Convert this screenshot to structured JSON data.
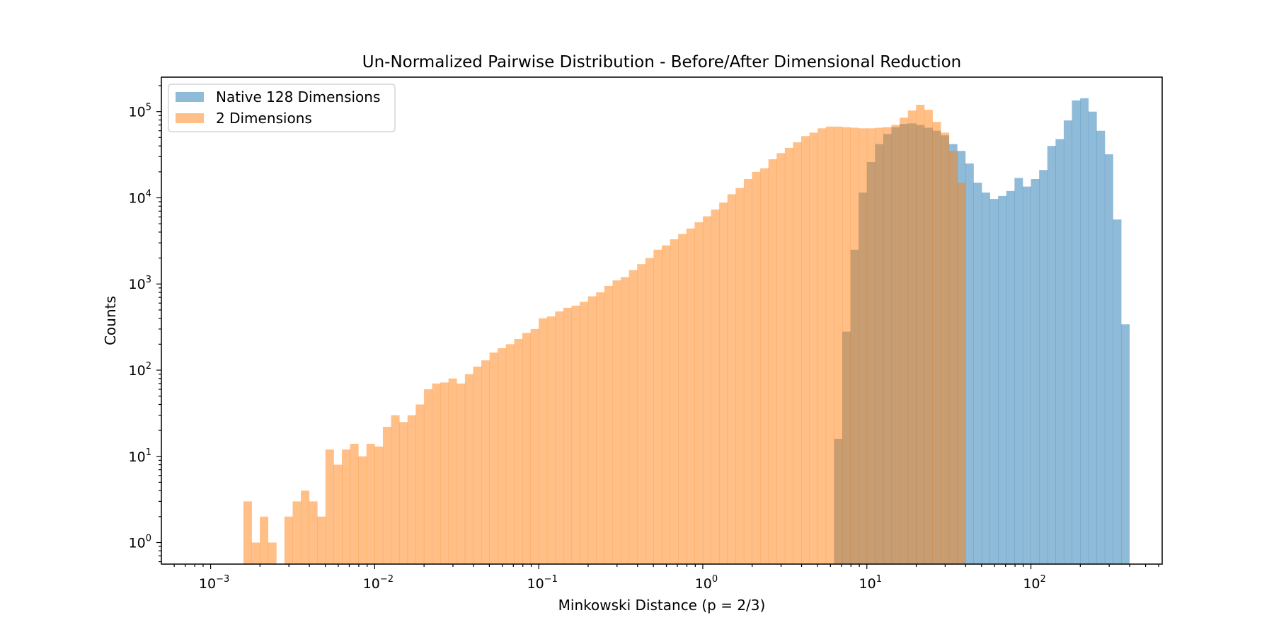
{
  "chart_data": {
    "type": "histogram",
    "title": "Un-Normalized Pairwise Distribution - Before/After Dimensional Reduction",
    "xlabel": "Minkowski Distance (p = 2/3)",
    "ylabel": "Counts",
    "xscale": "log",
    "yscale": "log",
    "xlim": [
      0.000501,
      630.96
    ],
    "ylim": [
      0.562,
      251189
    ],
    "grid": false,
    "legend_position": "upper-left",
    "x_ticks": [
      {
        "value": 0.001,
        "base": "10",
        "exp": "−3"
      },
      {
        "value": 0.01,
        "base": "10",
        "exp": "−2"
      },
      {
        "value": 0.1,
        "base": "10",
        "exp": "−1"
      },
      {
        "value": 1,
        "base": "10",
        "exp": "0"
      },
      {
        "value": 10,
        "base": "10",
        "exp": "1"
      },
      {
        "value": 100,
        "base": "10",
        "exp": "2"
      }
    ],
    "y_ticks": [
      {
        "value": 1,
        "base": "10",
        "exp": "0"
      },
      {
        "value": 10,
        "base": "10",
        "exp": "1"
      },
      {
        "value": 100,
        "base": "10",
        "exp": "2"
      },
      {
        "value": 1000,
        "base": "10",
        "exp": "3"
      },
      {
        "value": 10000,
        "base": "10",
        "exp": "4"
      },
      {
        "value": 100000,
        "base": "10",
        "exp": "5"
      }
    ],
    "bin_log_start": -2.8,
    "bin_log_width": 0.05,
    "series": [
      {
        "name": "Native 128 Dimensions",
        "color": "#1f77b4",
        "alpha": 0.5,
        "start_bin": 0,
        "values": [
          0,
          0,
          0,
          0,
          0,
          0,
          0,
          0,
          0,
          0,
          0,
          0,
          0,
          0,
          0,
          0,
          0,
          0,
          0,
          0,
          0,
          0,
          0,
          0,
          0,
          0,
          0,
          0,
          0,
          0,
          0,
          0,
          0,
          0,
          0,
          0,
          0,
          0,
          0,
          0,
          0,
          0,
          0,
          0,
          0,
          0,
          0,
          0,
          0,
          0,
          0,
          0,
          0,
          0,
          0,
          0,
          0,
          0,
          0,
          0,
          0,
          0,
          0,
          0,
          0,
          0,
          0,
          0,
          0,
          0,
          0,
          0,
          16,
          280,
          2500,
          11500,
          26000,
          42000,
          55000,
          66000,
          72000,
          73000,
          70000,
          65000,
          60000,
          53000,
          42000,
          35000,
          25000,
          15000,
          11500,
          9700,
          10500,
          12000,
          17000,
          13500,
          16500,
          21000,
          40000,
          48000,
          79000,
          135000,
          143000,
          100000,
          60000,
          32000,
          5600,
          340
        ]
      },
      {
        "name": "2 Dimensions",
        "color": "#ff7f0e",
        "alpha": 0.5,
        "start_bin": 0,
        "values": [
          3,
          1,
          2,
          1,
          0,
          2,
          3,
          4,
          3,
          2,
          12,
          8,
          12,
          14,
          10,
          14,
          13,
          22,
          30,
          25,
          30,
          40,
          60,
          70,
          72,
          80,
          70,
          90,
          110,
          130,
          160,
          180,
          200,
          230,
          270,
          300,
          400,
          420,
          480,
          530,
          560,
          620,
          720,
          800,
          950,
          1100,
          1200,
          1450,
          1700,
          2000,
          2500,
          2800,
          3300,
          3800,
          4400,
          5200,
          6100,
          7300,
          8800,
          11000,
          13000,
          16500,
          20000,
          22000,
          28000,
          33000,
          38000,
          44000,
          52000,
          57000,
          64000,
          67000,
          67000,
          66000,
          65000,
          64000,
          64000,
          65000,
          66000,
          70000,
          85000,
          103000,
          120000,
          105000,
          76000,
          57000,
          35000,
          15000
        ]
      }
    ]
  }
}
